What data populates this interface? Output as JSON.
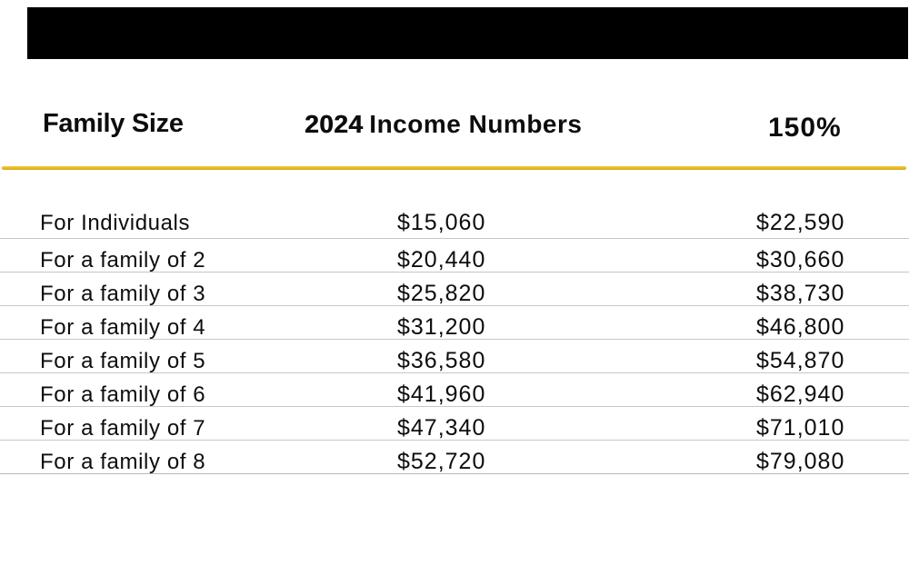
{
  "page": {
    "background_color": "#ffffff",
    "top_bar_color": "#000000",
    "accent_rule_color": "#E5B622",
    "row_line_color": "#c7c7c7",
    "text_color": "#0d0d0d"
  },
  "header": {
    "family_size": "Family Size",
    "income_year": "2024",
    "income_text": "Income Numbers",
    "percent": "150%"
  },
  "chart_data": {
    "type": "table",
    "title": "2024 Income Numbers by Family Size",
    "columns": [
      "Family Size",
      "2024 Income Numbers",
      "150%"
    ],
    "rows": [
      [
        "For Individuals",
        "$15,060",
        "$22,590"
      ],
      [
        "For a family of 2",
        "$20,440",
        "$30,660"
      ],
      [
        "For a family of 3",
        "$25,820",
        "$38,730"
      ],
      [
        "For a family of 4",
        "$31,200",
        "$46,800"
      ],
      [
        "For a family of 5",
        "$36,580",
        "$54,870"
      ],
      [
        "For a family of 6",
        "$41,960",
        "$62,940"
      ],
      [
        "For a family of 7",
        "$47,340",
        "$71,010"
      ],
      [
        "For a family of 8",
        "$52,720",
        "$79,080"
      ]
    ],
    "layout": {
      "grid": "horizontal row separators only",
      "header_rule_color": "#E5B622",
      "header_rule_position": "below column headers"
    }
  }
}
